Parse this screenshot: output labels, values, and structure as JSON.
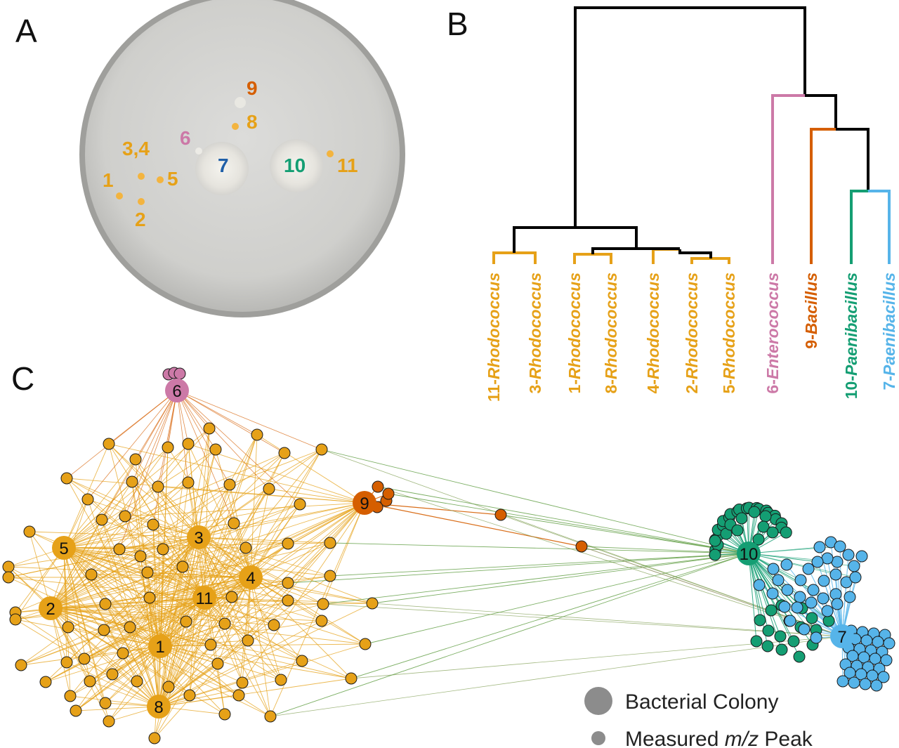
{
  "panel_letters": {
    "a": "A",
    "b": "B",
    "c": "C"
  },
  "colors": {
    "rhodococcus": "#e6a118",
    "enterococcus": "#cc79a7",
    "bacillus": "#d55e00",
    "paenibacillus_10": "#149e73",
    "paenibacillus_7": "#56b4e9",
    "tree": "#000000",
    "label_blue": "#1f5fa8",
    "legend_gray": "#8c8c8c"
  },
  "plate": {
    "labels": [
      {
        "id": "1",
        "text": "1",
        "color": "rhodococcus"
      },
      {
        "id": "2",
        "text": "2",
        "color": "rhodococcus"
      },
      {
        "id": "34",
        "text": "3,4",
        "color": "rhodococcus"
      },
      {
        "id": "5",
        "text": "5",
        "color": "rhodococcus"
      },
      {
        "id": "6",
        "text": "6",
        "color": "enterococcus"
      },
      {
        "id": "7",
        "text": "7",
        "color": "label_blue"
      },
      {
        "id": "8",
        "text": "8",
        "color": "rhodococcus"
      },
      {
        "id": "9",
        "text": "9",
        "color": "bacillus"
      },
      {
        "id": "10",
        "text": "10",
        "color": "paenibacillus_10"
      },
      {
        "id": "11",
        "text": "11",
        "color": "rhodococcus"
      }
    ]
  },
  "dendrogram": {
    "leaves": [
      {
        "num": "11",
        "genus": "Rhodococcus",
        "color": "rhodococcus"
      },
      {
        "num": "3",
        "genus": "Rhodococcus",
        "color": "rhodococcus"
      },
      {
        "num": "1",
        "genus": "Rhodococcus",
        "color": "rhodococcus"
      },
      {
        "num": "8",
        "genus": "Rhodococcus",
        "color": "rhodococcus"
      },
      {
        "num": "4",
        "genus": "Rhodococcus",
        "color": "rhodococcus"
      },
      {
        "num": "2",
        "genus": "Rhodococcus",
        "color": "rhodococcus"
      },
      {
        "num": "5",
        "genus": "Rhodococcus",
        "color": "rhodococcus"
      },
      {
        "num": "6",
        "genus": "Enterococcus",
        "color": "enterococcus"
      },
      {
        "num": "9",
        "genus": "Bacillus",
        "color": "bacillus"
      },
      {
        "num": "10",
        "genus": "Paenibacillus",
        "color": "paenibacillus_10"
      },
      {
        "num": "7",
        "genus": "Paenibacillus",
        "color": "paenibacillus_7"
      }
    ]
  },
  "network": {
    "colonies": [
      {
        "id": "6",
        "label": "6",
        "color": "enterococcus"
      },
      {
        "id": "9",
        "label": "9",
        "color": "bacillus"
      },
      {
        "id": "5",
        "label": "5",
        "color": "rhodococcus"
      },
      {
        "id": "3",
        "label": "3",
        "color": "rhodococcus"
      },
      {
        "id": "4",
        "label": "4",
        "color": "rhodococcus"
      },
      {
        "id": "2",
        "label": "2",
        "color": "rhodococcus"
      },
      {
        "id": "11",
        "label": "11",
        "color": "rhodococcus"
      },
      {
        "id": "1",
        "label": "1",
        "color": "rhodococcus"
      },
      {
        "id": "8",
        "label": "8",
        "color": "rhodococcus"
      },
      {
        "id": "10",
        "label": "10",
        "color": "paenibacillus_10"
      },
      {
        "id": "7",
        "label": "7",
        "color": "paenibacillus_7"
      }
    ]
  },
  "legend": {
    "colony_label": "Bacterial Colony",
    "peak_label_prefix": "Measured ",
    "peak_label_italic": "m/z",
    "peak_label_suffix": " Peak"
  }
}
